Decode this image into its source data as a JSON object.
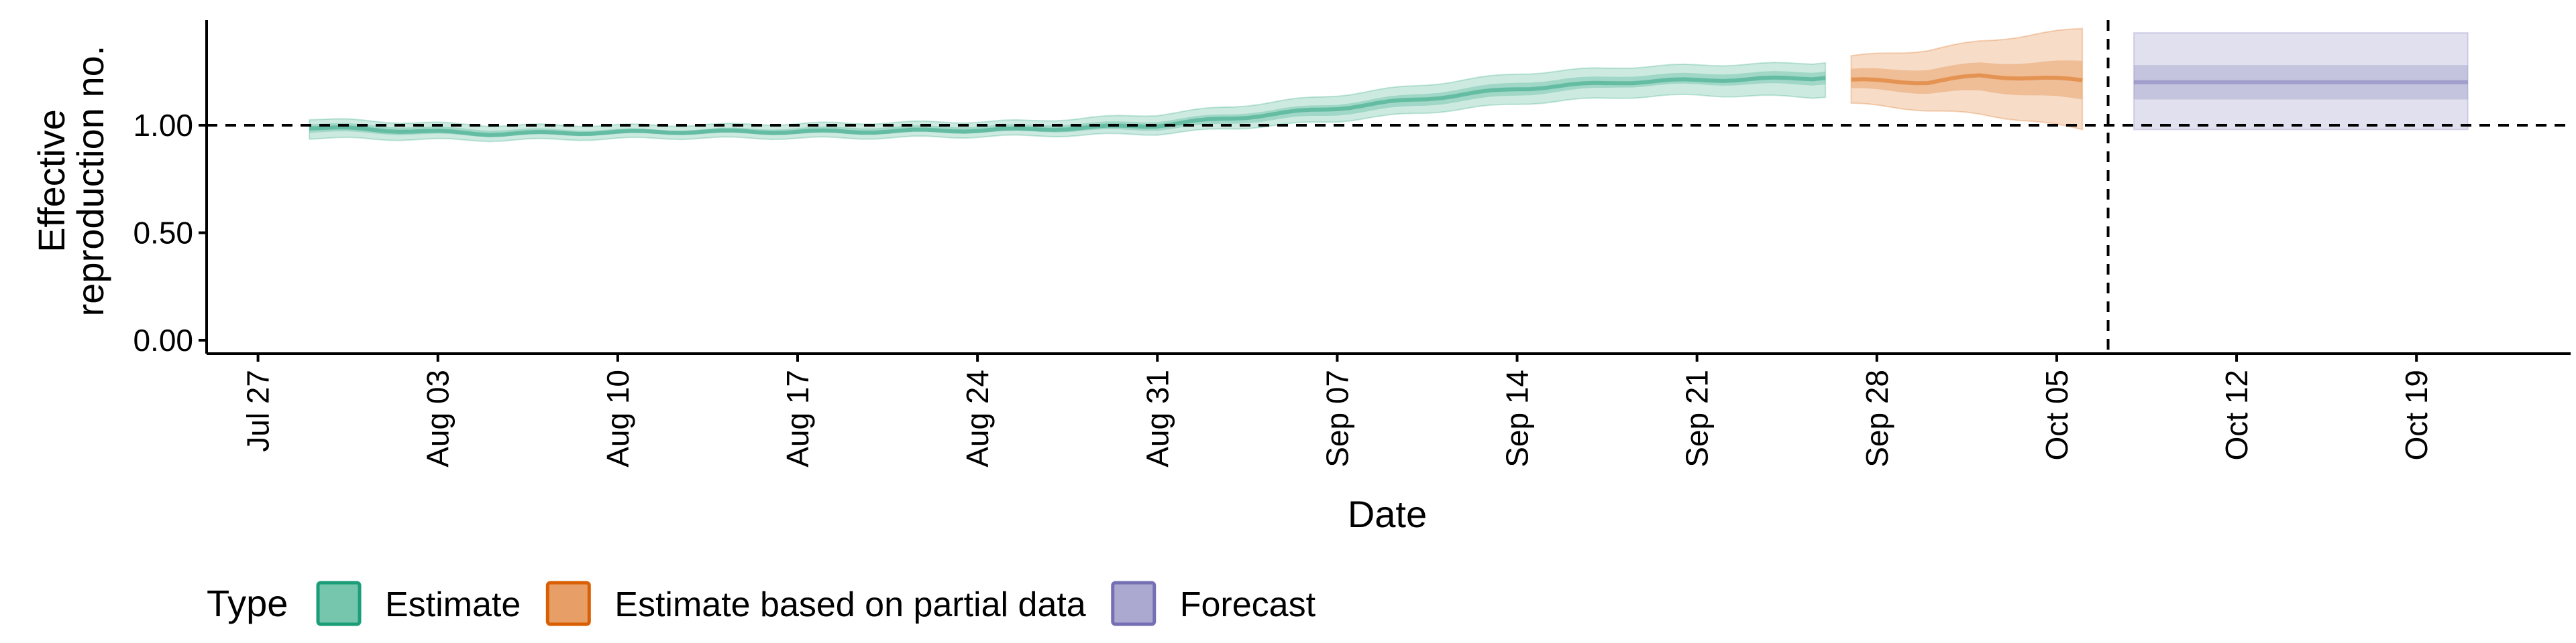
{
  "chart_data": {
    "type": "area",
    "xlabel": "Date",
    "ylabel": "Effective\nreproduction no.",
    "ylim": [
      0,
      1.5
    ],
    "y_ticks": [
      {
        "value": 0.0,
        "label": "0.00"
      },
      {
        "value": 0.5,
        "label": "0.50"
      },
      {
        "value": 1.0,
        "label": "1.00"
      }
    ],
    "x_ticks": [
      "2020-07-27",
      "2020-08-03",
      "2020-08-10",
      "2020-08-17",
      "2020-08-24",
      "2020-08-31",
      "2020-09-07",
      "2020-09-14",
      "2020-09-21",
      "2020-09-28",
      "2020-10-05",
      "2020-10-12",
      "2020-10-19"
    ],
    "x_tick_labels": [
      "Jul 27",
      "Aug 03",
      "Aug 10",
      "Aug 17",
      "Aug 24",
      "Aug 31",
      "Sep 07",
      "Sep 14",
      "Sep 21",
      "Sep 28",
      "Oct 05",
      "Oct 12",
      "Oct 19"
    ],
    "x_range": [
      "2020-07-25",
      "2020-10-25"
    ],
    "reference_line_y": 1.0,
    "forecast_start": "2020-10-07",
    "grid": false,
    "legend_position": "bottom",
    "legend_title": "Type",
    "series": [
      {
        "name": "Estimate",
        "color": "#1b9e77",
        "points": [
          {
            "date": "2020-07-29",
            "median": 0.99,
            "lower50": 0.97,
            "upper50": 1.01,
            "lower90": 0.94,
            "upper90": 1.03
          },
          {
            "date": "2020-08-05",
            "median": 0.96,
            "lower50": 0.95,
            "upper50": 0.98,
            "lower90": 0.93,
            "upper90": 1.0
          },
          {
            "date": "2020-08-12",
            "median": 0.97,
            "lower50": 0.96,
            "upper50": 0.98,
            "lower90": 0.94,
            "upper90": 1.0
          },
          {
            "date": "2020-08-19",
            "median": 0.97,
            "lower50": 0.96,
            "upper50": 0.99,
            "lower90": 0.94,
            "upper90": 1.01
          },
          {
            "date": "2020-08-26",
            "median": 0.98,
            "lower50": 0.97,
            "upper50": 1.0,
            "lower90": 0.95,
            "upper90": 1.02
          },
          {
            "date": "2020-08-31",
            "median": 1.0,
            "lower50": 0.98,
            "upper50": 1.02,
            "lower90": 0.96,
            "upper90": 1.05
          },
          {
            "date": "2020-09-07",
            "median": 1.08,
            "lower50": 1.05,
            "upper50": 1.1,
            "lower90": 1.02,
            "upper90": 1.14
          },
          {
            "date": "2020-09-14",
            "median": 1.17,
            "lower50": 1.14,
            "upper50": 1.2,
            "lower90": 1.1,
            "upper90": 1.24
          },
          {
            "date": "2020-09-18",
            "median": 1.2,
            "lower50": 1.18,
            "upper50": 1.23,
            "lower90": 1.13,
            "upper90": 1.27
          },
          {
            "date": "2020-09-21",
            "median": 1.21,
            "lower50": 1.19,
            "upper50": 1.24,
            "lower90": 1.14,
            "upper90": 1.28
          },
          {
            "date": "2020-09-26",
            "median": 1.22,
            "lower50": 1.19,
            "upper50": 1.25,
            "lower90": 1.13,
            "upper90": 1.29
          }
        ]
      },
      {
        "name": "Estimate based on partial data",
        "color": "#d95f02",
        "points": [
          {
            "date": "2020-09-27",
            "median": 1.21,
            "lower50": 1.17,
            "upper50": 1.26,
            "lower90": 1.1,
            "upper90": 1.32
          },
          {
            "date": "2020-09-30",
            "median": 1.2,
            "lower50": 1.15,
            "upper50": 1.26,
            "lower90": 1.07,
            "upper90": 1.35
          },
          {
            "date": "2020-10-02",
            "median": 1.23,
            "lower50": 1.16,
            "upper50": 1.29,
            "lower90": 1.05,
            "upper90": 1.39
          },
          {
            "date": "2020-10-04",
            "median": 1.22,
            "lower50": 1.14,
            "upper50": 1.29,
            "lower90": 1.02,
            "upper90": 1.42
          },
          {
            "date": "2020-10-06",
            "median": 1.21,
            "lower50": 1.12,
            "upper50": 1.3,
            "lower90": 0.98,
            "upper90": 1.45
          }
        ]
      },
      {
        "name": "Forecast",
        "color": "#7570b3",
        "points": [
          {
            "date": "2020-10-08",
            "median": 1.2,
            "lower50": 1.12,
            "upper50": 1.28,
            "lower90": 0.98,
            "upper90": 1.43
          },
          {
            "date": "2020-10-21",
            "median": 1.2,
            "lower50": 1.12,
            "upper50": 1.28,
            "lower90": 0.98,
            "upper90": 1.43
          }
        ]
      }
    ]
  }
}
